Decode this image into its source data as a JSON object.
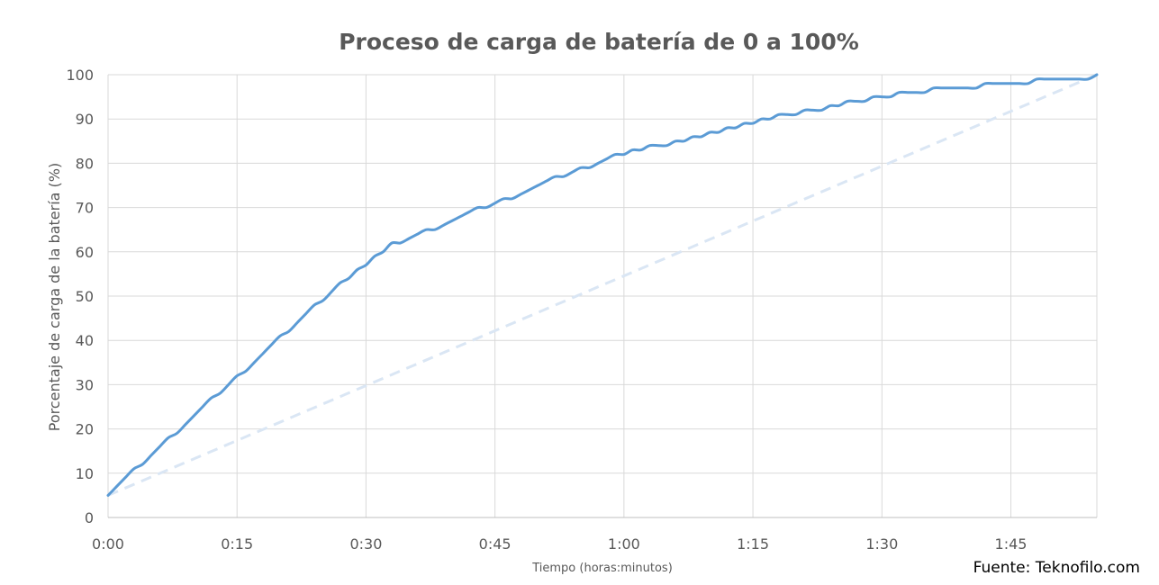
{
  "chart_data": {
    "type": "line",
    "title": "Proceso de carga de batería de 0 a 100%",
    "xlabel": "Tiempo (horas:minutos)",
    "ylabel": "Porcentaje de carga de la batería (%)",
    "source": "Fuente: Teknofilo.com",
    "x_unit": "minutes",
    "xlim": [
      0,
      115
    ],
    "ylim": [
      0,
      100
    ],
    "x_ticks": [
      {
        "value": 0,
        "label": "0:00"
      },
      {
        "value": 15,
        "label": "0:15"
      },
      {
        "value": 30,
        "label": "0:30"
      },
      {
        "value": 45,
        "label": "0:45"
      },
      {
        "value": 60,
        "label": "1:00"
      },
      {
        "value": 75,
        "label": "1:15"
      },
      {
        "value": 90,
        "label": "1:30"
      },
      {
        "value": 105,
        "label": "1:45"
      }
    ],
    "y_ticks": [
      {
        "value": 0,
        "label": "0"
      },
      {
        "value": 10,
        "label": "10"
      },
      {
        "value": 20,
        "label": "20"
      },
      {
        "value": 30,
        "label": "30"
      },
      {
        "value": 40,
        "label": "40"
      },
      {
        "value": 50,
        "label": "50"
      },
      {
        "value": 60,
        "label": "60"
      },
      {
        "value": 70,
        "label": "70"
      },
      {
        "value": 80,
        "label": "80"
      },
      {
        "value": 90,
        "label": "90"
      },
      {
        "value": 100,
        "label": "100"
      }
    ],
    "grid": true,
    "series": [
      {
        "color": "#5b9bd5",
        "style": "solid",
        "x": [
          0,
          1,
          2,
          3,
          4,
          5,
          6,
          7,
          8,
          9,
          10,
          11,
          12,
          13,
          14,
          15,
          16,
          17,
          18,
          19,
          20,
          21,
          22,
          23,
          24,
          25,
          26,
          27,
          28,
          29,
          30,
          31,
          32,
          33,
          34,
          35,
          36,
          37,
          38,
          39,
          40,
          41,
          42,
          43,
          44,
          45,
          46,
          47,
          48,
          49,
          50,
          51,
          52,
          53,
          54,
          55,
          56,
          57,
          58,
          59,
          60,
          61,
          62,
          63,
          64,
          65,
          66,
          67,
          68,
          69,
          70,
          71,
          72,
          73,
          74,
          75,
          76,
          77,
          78,
          79,
          80,
          81,
          82,
          83,
          84,
          85,
          86,
          87,
          88,
          89,
          90,
          91,
          92,
          93,
          94,
          95,
          96,
          97,
          98,
          99,
          100,
          101,
          102,
          103,
          104,
          105,
          106,
          107,
          108,
          109,
          110,
          111,
          112,
          113,
          114,
          115
        ],
        "y": [
          5,
          7,
          9,
          11,
          12,
          14,
          16,
          18,
          19,
          21,
          23,
          25,
          27,
          28,
          30,
          32,
          33,
          35,
          37,
          39,
          41,
          42,
          44,
          46,
          48,
          49,
          51,
          53,
          54,
          56,
          57,
          59,
          60,
          62,
          62,
          63,
          64,
          65,
          65,
          66,
          67,
          68,
          69,
          70,
          70,
          71,
          72,
          72,
          73,
          74,
          75,
          76,
          77,
          77,
          78,
          79,
          79,
          80,
          81,
          82,
          82,
          83,
          83,
          84,
          84,
          84,
          85,
          85,
          86,
          86,
          87,
          87,
          88,
          88,
          89,
          89,
          90,
          90,
          91,
          91,
          91,
          92,
          92,
          92,
          93,
          93,
          94,
          94,
          94,
          95,
          95,
          95,
          96,
          96,
          96,
          96,
          97,
          97,
          97,
          97,
          97,
          97,
          98,
          98,
          98,
          98,
          98,
          98,
          99,
          99,
          99,
          99,
          99,
          99,
          99,
          100
        ]
      },
      {
        "color": "#dae6f4",
        "style": "dashed",
        "x": [
          0,
          115
        ],
        "y": [
          5,
          100
        ]
      }
    ]
  }
}
